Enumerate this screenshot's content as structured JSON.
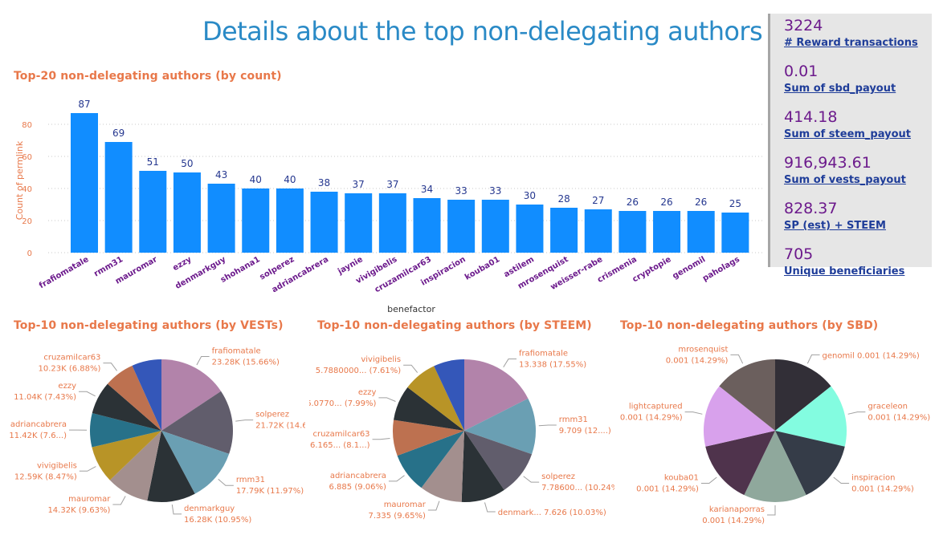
{
  "page": {
    "title": "Details about the top non-delegating authors"
  },
  "kpis": [
    {
      "value": "3224",
      "label": "# Reward transactions"
    },
    {
      "value": "0.01",
      "label": "Sum of sbd_payout"
    },
    {
      "value": "414.18",
      "label": "Sum of steem_payout"
    },
    {
      "value": "916,943.61",
      "label": "Sum of vests_payout"
    },
    {
      "value": "828.37",
      "label": "SP (est) + STEEM"
    },
    {
      "value": "705",
      "label": "Unique beneficiaries"
    }
  ],
  "colors": {
    "bar": "#118dff",
    "bar_label": "#25378f",
    "tick_label": "#e8784a",
    "category_label": "#6c1a8c",
    "chart_title": "#e8784a",
    "page_title": "#2a8ac6"
  },
  "chart_data": [
    {
      "type": "bar",
      "title": "Top-20 non-delegating authors (by count)",
      "xlabel": "benefactor",
      "ylabel": "Count of permlink",
      "ylim": [
        0,
        90
      ],
      "yticks": [
        0,
        20,
        40,
        60,
        80
      ],
      "grid": true,
      "categories": [
        "frafiomatale",
        "rmm31",
        "mauromar",
        "ezzy",
        "denmarkguy",
        "shohana1",
        "solperez",
        "adriancabrera",
        "jaynie",
        "vivigibelis",
        "cruzamilcar63",
        "inspiracion",
        "kouba01",
        "astilem",
        "mrosenquist",
        "weisser-rabe",
        "crismenia",
        "cryptopie",
        "genomil",
        "paholags"
      ],
      "values": [
        87,
        69,
        51,
        50,
        43,
        40,
        40,
        38,
        37,
        37,
        34,
        33,
        33,
        30,
        28,
        27,
        26,
        26,
        26,
        25
      ]
    },
    {
      "type": "pie",
      "title": "Top-10 non-delegating authors (by VESTs)",
      "slices": [
        {
          "name": "frafiomatale",
          "value": 23.28,
          "percent": 15.66,
          "label": "frafiomatale\n23.28K (15.66%)",
          "color": "#b283aa"
        },
        {
          "name": "solperez",
          "value": 21.72,
          "percent": 14.61,
          "label": "solperez\n21.72K (14.6...)",
          "color": "#615d6c"
        },
        {
          "name": "rmm31",
          "value": 17.79,
          "percent": 11.97,
          "label": "rmm31\n17.79K (11.97%)",
          "color": "#6a9fb3"
        },
        {
          "name": "denmarkguy",
          "value": 16.28,
          "percent": 10.95,
          "label": "denmarkguy\n16.28K (10.95%)",
          "color": "#2b3236"
        },
        {
          "name": "mauromar",
          "value": 14.32,
          "percent": 9.63,
          "label": "mauromar\n14.32K (9.63%)",
          "color": "#a38f8e"
        },
        {
          "name": "vivigibelis",
          "value": 12.59,
          "percent": 8.47,
          "label": "vivigibelis\n12.59K (8.47%)",
          "color": "#b89427"
        },
        {
          "name": "adriancabrera",
          "value": 11.42,
          "percent": 7.68,
          "label": "adriancabrera\n11.42K (7.6...)",
          "color": "#277189"
        },
        {
          "name": "ezzy",
          "value": 11.04,
          "percent": 7.43,
          "label": "ezzy\n11.04K (7.43%)",
          "color": "#2b3236"
        },
        {
          "name": "cruzamilcar63",
          "value": 10.23,
          "percent": 6.88,
          "label": "cruzamilcar63\n10.23K (6.88%)",
          "color": "#bd7150"
        },
        {
          "name": "",
          "value": 10.0,
          "percent": 6.72,
          "label": "",
          "color": "#3457b9"
        }
      ]
    },
    {
      "type": "pie",
      "title": "Top-10 non-delegating authors (by STEEM)",
      "slices": [
        {
          "name": "frafiomatale",
          "value": 13.338,
          "percent": 17.55,
          "label": "frafiomatale\n13.338 (17.55%)",
          "color": "#b283aa"
        },
        {
          "name": "rmm31",
          "value": 9.709,
          "percent": 12.78,
          "label": "rmm31\n9.709 (12....)",
          "color": "#6a9fb3"
        },
        {
          "name": "solperez",
          "value": 7.786,
          "percent": 10.24,
          "label": "solperez\n7.78600... (10.24%)",
          "color": "#615d6c"
        },
        {
          "name": "denmarkguy",
          "value": 7.626,
          "percent": 10.03,
          "label": "denmark... 7.626 (10.03%)",
          "color": "#2b3236"
        },
        {
          "name": "mauromar",
          "value": 7.335,
          "percent": 9.65,
          "label": "mauromar\n7.335 (9.65%)",
          "color": "#a38f8e"
        },
        {
          "name": "adriancabrera",
          "value": 6.885,
          "percent": 9.06,
          "label": "adriancabrera\n6.885 (9.06%)",
          "color": "#277189"
        },
        {
          "name": "cruzamilcar63",
          "value": 6.165,
          "percent": 8.11,
          "label": "cruzamilcar63\n6.165... (8.1...)",
          "color": "#bd7150"
        },
        {
          "name": "ezzy",
          "value": 6.077,
          "percent": 7.99,
          "label": "ezzy\n6.0770... (7.99%)",
          "color": "#2b3236"
        },
        {
          "name": "vivigibelis",
          "value": 5.788,
          "percent": 7.61,
          "label": "vivigibelis\n5.7880000... (7.61%)",
          "color": "#b89427"
        },
        {
          "name": "",
          "value": 5.3,
          "percent": 6.98,
          "label": "",
          "color": "#3457b9"
        }
      ]
    },
    {
      "type": "pie",
      "title": "Top-10 non-delegating authors (by SBD)",
      "slices": [
        {
          "name": "genomil",
          "value": 0.001,
          "percent": 14.29,
          "label": "genomil 0.001 (14.29%)",
          "color": "#322f37"
        },
        {
          "name": "graceleon",
          "value": 0.001,
          "percent": 14.29,
          "label": "graceleon\n0.001 (14.29%)",
          "color": "#83fce0"
        },
        {
          "name": "inspiracion",
          "value": 0.001,
          "percent": 14.29,
          "label": "inspiracion\n0.001 (14.29%)",
          "color": "#353c48"
        },
        {
          "name": "karianaporras",
          "value": 0.001,
          "percent": 14.29,
          "label": "karianaporras\n0.001 (14.29%)",
          "color": "#8fa89c"
        },
        {
          "name": "kouba01",
          "value": 0.001,
          "percent": 14.29,
          "label": "kouba01\n0.001 (14.29%)",
          "color": "#4f334c"
        },
        {
          "name": "lightcaptured",
          "value": 0.001,
          "percent": 14.29,
          "label": "lightcaptured\n0.001 (14.29%)",
          "color": "#d8a1ec"
        },
        {
          "name": "mrosenquist",
          "value": 0.001,
          "percent": 14.29,
          "label": "mrosenquist\n0.001 (14.29%)",
          "color": "#6b5f5d"
        }
      ]
    }
  ]
}
